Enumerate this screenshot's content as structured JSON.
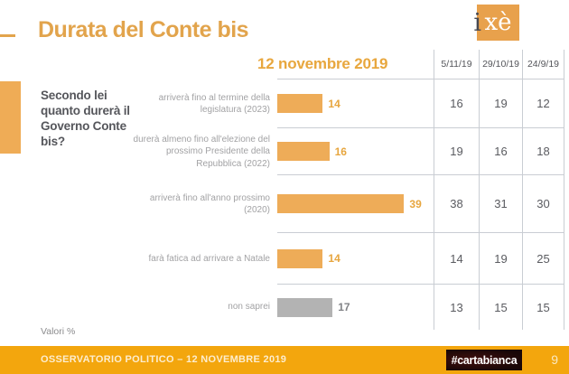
{
  "slide": {
    "title": "Durata del Conte bis",
    "question": "Secondo lei quanto durerà il Governo Conte bis?",
    "footnote": "Valori %"
  },
  "logo": {
    "i": "i",
    "xe": "xè"
  },
  "footer": {
    "label": "OSSERVATORIO POLITICO – 12 NOVEMBRE 2019",
    "brand": "#cartabianca",
    "page": "9"
  },
  "colors": {
    "accent_orange": "#E2A44C",
    "bar_orange": "#EEAC58",
    "bar_gray": "#B3B3B3",
    "footer_orange": "#F3A60D",
    "grid_line": "#C9CDD3"
  },
  "chart_data": {
    "type": "bar",
    "orientation": "horizontal",
    "title": "Durata del Conte bis",
    "question": "Secondo lei quanto durerà il Governo Conte bis?",
    "value_unit": "Valori %",
    "categories": [
      "arriverà fino al termine della legislatura (2023)",
      "durerà almeno fino all'elezione del prossimo Presidente della Repubblica (2022)",
      "arriverà fino all'anno prossimo (2020)",
      "farà fatica ad arrivare a Natale",
      "non saprei"
    ],
    "series": [
      {
        "name": "12 novembre 2019",
        "values": [
          14,
          16,
          39,
          14,
          17
        ]
      },
      {
        "name": "5/11/19",
        "values": [
          16,
          19,
          38,
          14,
          13
        ]
      },
      {
        "name": "29/10/19",
        "values": [
          19,
          16,
          31,
          19,
          15
        ]
      },
      {
        "name": "24/9/19",
        "values": [
          12,
          18,
          30,
          25,
          15
        ]
      }
    ],
    "bar_styles": [
      "main",
      "main",
      "main",
      "main",
      "neutral"
    ],
    "xlim": [
      0,
      48
    ],
    "grid": "table-lines",
    "legend_position": "none"
  }
}
